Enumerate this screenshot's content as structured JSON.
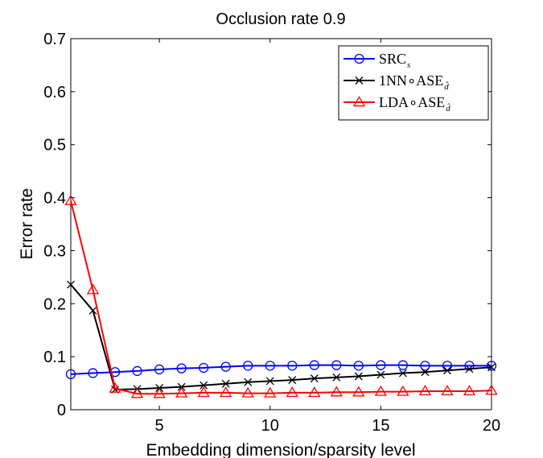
{
  "chart_data": {
    "type": "line",
    "title": "Occlusion rate 0.9",
    "xlabel": "Embedding dimension/sparsity level",
    "ylabel": "Error rate",
    "xlim": [
      1,
      20
    ],
    "ylim": [
      0,
      0.7
    ],
    "xticks": [
      5,
      10,
      15,
      20
    ],
    "yticks": [
      0,
      0.1,
      0.2,
      0.3,
      0.4,
      0.5,
      0.6,
      0.7
    ],
    "xtick_labels": [
      "5",
      "10",
      "15",
      "20"
    ],
    "ytick_labels": [
      "0",
      "0.1",
      "0.2",
      "0.3",
      "0.4",
      "0.5",
      "0.6",
      "0.7"
    ],
    "grid": false,
    "legend_position": "top-right",
    "x": [
      1,
      2,
      3,
      4,
      5,
      6,
      7,
      8,
      9,
      10,
      11,
      12,
      13,
      14,
      15,
      16,
      17,
      18,
      19,
      20
    ],
    "series": [
      {
        "name": "SRC",
        "subscript": "s",
        "color": "#0000ff",
        "marker": "circle",
        "line_width": 2,
        "values": [
          0.067,
          0.069,
          0.071,
          0.073,
          0.076,
          0.078,
          0.079,
          0.081,
          0.083,
          0.083,
          0.083,
          0.084,
          0.084,
          0.083,
          0.084,
          0.084,
          0.083,
          0.083,
          0.083,
          0.083
        ]
      },
      {
        "name": "1NN∘ASE",
        "subscript": "d̂",
        "color": "#000000",
        "marker": "x",
        "line_width": 2,
        "values": [
          0.236,
          0.187,
          0.038,
          0.039,
          0.041,
          0.043,
          0.046,
          0.049,
          0.052,
          0.054,
          0.056,
          0.059,
          0.061,
          0.063,
          0.066,
          0.069,
          0.071,
          0.074,
          0.077,
          0.08
        ]
      },
      {
        "name": "LDA∘ASE",
        "subscript": "d̂",
        "color": "#ff0000",
        "marker": "triangle",
        "line_width": 2,
        "values": [
          0.394,
          0.226,
          0.04,
          0.03,
          0.03,
          0.031,
          0.032,
          0.032,
          0.031,
          0.031,
          0.032,
          0.032,
          0.033,
          0.033,
          0.034,
          0.034,
          0.035,
          0.035,
          0.035,
          0.036
        ]
      }
    ]
  }
}
